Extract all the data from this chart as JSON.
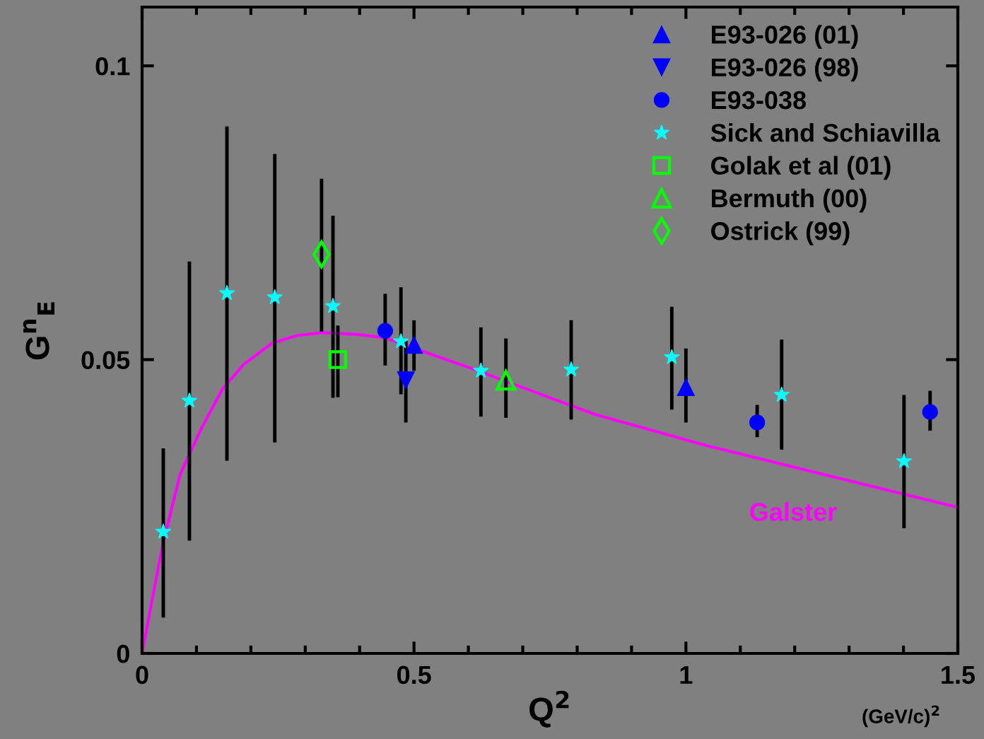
{
  "chart_data": {
    "type": "scatter",
    "xlabel": "Q$^{2}$",
    "ylabel": "G$^{n}$$_{E}$",
    "annotations": [
      "Galster",
      "(GeV/c)$^{2}$"
    ],
    "xlim": [
      0,
      1.5
    ],
    "ylim": [
      0,
      0.11
    ],
    "xticks": [
      0,
      {
        "value": 0.1,
        "label": null
      },
      {
        "value": 0.2,
        "label": null
      },
      {
        "value": 0.3,
        "label": null
      },
      {
        "value": 0.4,
        "label": null
      },
      0.5,
      {
        "value": 0.6,
        "label": null
      },
      {
        "value": 0.7,
        "label": null
      },
      {
        "value": 0.8,
        "label": null
      },
      {
        "value": 0.9,
        "label": null
      },
      1,
      {
        "value": 1.1,
        "label": null
      },
      {
        "value": 1.2,
        "label": null
      },
      {
        "value": 1.3,
        "label": null
      },
      {
        "value": 1.4,
        "label": null
      },
      1.5
    ],
    "yticks": [
      0,
      0.05,
      0.1
    ],
    "grid": false,
    "legend": "top right",
    "series": [
      {
        "name": "E93-026 (01)",
        "marker": "triangle",
        "color": "#0000ff",
        "x": [
          0.5,
          1.0
        ],
        "values": [
          0.0525,
          0.0453
        ],
        "errors": [
          [
            0.0481,
            0.0567
          ],
          [
            0.0393,
            0.0519
          ]
        ]
      },
      {
        "name": "E93-026 (98)",
        "marker": "triangle_down",
        "color": "#0000ff",
        "x": [
          0.485
        ],
        "values": [
          0.0465
        ],
        "errors": [
          [
            0.0393,
            0.0532
          ]
        ]
      },
      {
        "name": "E93-038",
        "marker": "circle",
        "color": "#0000ff",
        "x": [
          0.447,
          1.131,
          1.449
        ],
        "values": [
          0.0549,
          0.0393,
          0.0411
        ],
        "errors": [
          [
            0.049,
            0.0612
          ],
          [
            0.0368,
            0.0423
          ],
          [
            0.0379,
            0.0447
          ]
        ]
      },
      {
        "name": "Sick and Schiavilla",
        "marker": "star",
        "color": "#00ffff",
        "x": [
          0.039,
          0.087,
          0.156,
          0.244,
          0.351,
          0.476,
          0.623,
          0.789,
          0.974,
          1.176,
          1.401
        ],
        "values": [
          0.0207,
          0.043,
          0.0613,
          0.0606,
          0.0591,
          0.0531,
          0.0481,
          0.0483,
          0.0504,
          0.044,
          0.0327
        ],
        "errors": [
          [
            0.0061,
            0.0349
          ],
          [
            0.0192,
            0.0667
          ],
          [
            0.0328,
            0.0897
          ],
          [
            0.0359,
            0.085
          ],
          [
            0.0435,
            0.0745
          ],
          [
            0.0441,
            0.0623
          ],
          [
            0.0403,
            0.0555
          ],
          [
            0.0398,
            0.0567
          ],
          [
            0.0415,
            0.059
          ],
          [
            0.0347,
            0.0534
          ],
          [
            0.0213,
            0.044
          ]
        ]
      },
      {
        "name": "Golak et al (01)",
        "marker": "square_open",
        "color": "#00ff00",
        "x": [
          0.36
        ],
        "values": [
          0.05
        ],
        "errors": [
          [
            0.0436,
            0.0558
          ]
        ]
      },
      {
        "name": "Bermuth (00)",
        "marker": "triangle_open",
        "color": "#00ff00",
        "x": [
          0.669
        ],
        "values": [
          0.0465
        ],
        "errors": [
          [
            0.0401,
            0.0536
          ]
        ]
      },
      {
        "name": "Ostrick (99)",
        "marker": "diamond_open",
        "color": "#00ff00",
        "x": [
          0.33
        ],
        "values": [
          0.0679
        ],
        "errors": [
          [
            0.0548,
            0.0808
          ]
        ]
      },
      {
        "type": "line",
        "color": "#ff00ff",
        "x": [
          0,
          0.018,
          0.038,
          0.07,
          0.109,
          0.148,
          0.187,
          0.239,
          0.285,
          0.33,
          0.395,
          0.447,
          0.538,
          0.6,
          0.832,
          1.041,
          1.251,
          1.498
        ],
        "values": [
          0,
          0.0089,
          0.0185,
          0.0305,
          0.0383,
          0.045,
          0.0492,
          0.0528,
          0.0541,
          0.0546,
          0.0543,
          0.0537,
          0.0507,
          0.0487,
          0.0407,
          0.0353,
          0.0305,
          0.0249
        ]
      }
    ]
  }
}
